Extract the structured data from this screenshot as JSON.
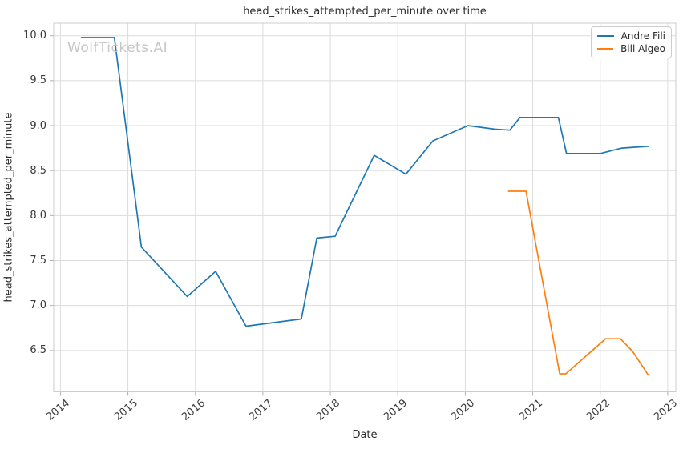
{
  "watermark": "WolfTickets.AI",
  "chart_data": {
    "type": "line",
    "title": "head_strikes_attempted_per_minute over time",
    "xlabel": "Date",
    "ylabel": "head_strikes_attempted_per_minute",
    "xlim": [
      2013.9,
      2023.12
    ],
    "ylim": [
      6.04,
      10.14
    ],
    "x_ticks": [
      2014,
      2015,
      2016,
      2017,
      2018,
      2019,
      2020,
      2021,
      2022,
      2023
    ],
    "y_ticks": [
      6.5,
      7.0,
      7.5,
      8.0,
      8.5,
      9.0,
      9.5,
      10.0
    ],
    "grid": true,
    "legend_position": "upper right",
    "colors": {
      "grid": "#dcdcdc",
      "spine": "#cccccc",
      "tick": "#b0b0b0"
    },
    "series": [
      {
        "name": "Andre Fili",
        "color": "#1f77b4",
        "points": [
          [
            2014.31,
            9.98
          ],
          [
            2014.8,
            9.98
          ],
          [
            2015.2,
            7.65
          ],
          [
            2015.88,
            7.1
          ],
          [
            2016.3,
            7.38
          ],
          [
            2016.75,
            6.77
          ],
          [
            2017.57,
            6.85
          ],
          [
            2017.8,
            7.75
          ],
          [
            2018.07,
            7.77
          ],
          [
            2018.65,
            8.67
          ],
          [
            2019.12,
            8.46
          ],
          [
            2019.52,
            8.83
          ],
          [
            2020.04,
            9.0
          ],
          [
            2020.44,
            8.96
          ],
          [
            2020.66,
            8.95
          ],
          [
            2020.81,
            9.09
          ],
          [
            2021.38,
            9.09
          ],
          [
            2021.5,
            8.69
          ],
          [
            2022.0,
            8.69
          ],
          [
            2022.32,
            8.75
          ],
          [
            2022.71,
            8.77
          ]
        ]
      },
      {
        "name": "Bill Algeo",
        "color": "#ff7f0e",
        "points": [
          [
            2020.64,
            8.27
          ],
          [
            2020.9,
            8.27
          ],
          [
            2021.4,
            6.24
          ],
          [
            2021.49,
            6.24
          ],
          [
            2022.08,
            6.63
          ],
          [
            2022.3,
            6.63
          ],
          [
            2022.48,
            6.49
          ],
          [
            2022.71,
            6.23
          ]
        ]
      }
    ]
  }
}
